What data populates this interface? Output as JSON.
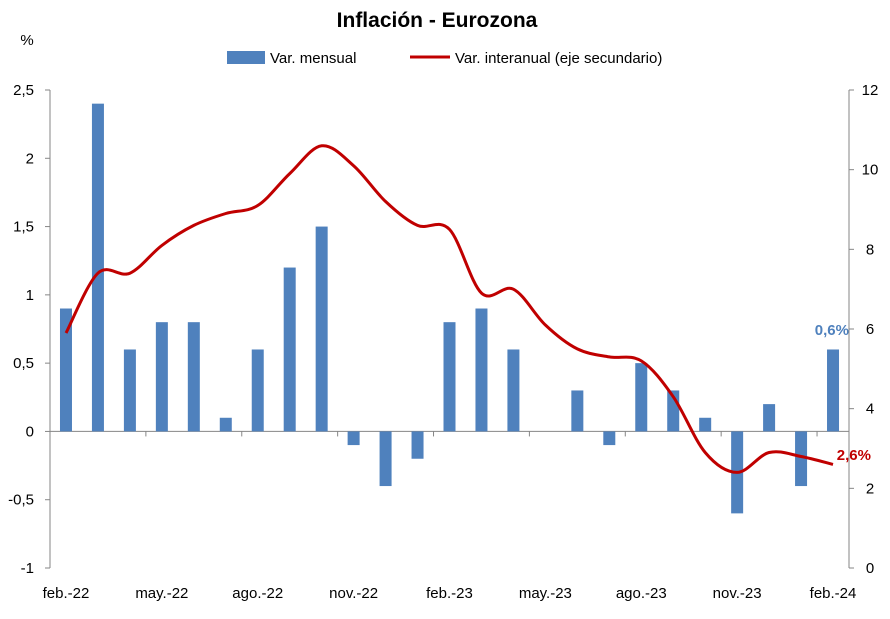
{
  "colors": {
    "bar": "#4F81BD",
    "line": "#C00000",
    "axis": "#868686",
    "bar_label": "#4F81BD",
    "line_label": "#C00000"
  },
  "chart_data": {
    "type": "bar+line",
    "title": "Inflación - Eurozona",
    "ylabel": "%",
    "y2label": "",
    "ylim": [
      -1,
      2.5
    ],
    "y2lim": [
      0,
      12
    ],
    "yticks": [
      "2,5",
      "2",
      "1,5",
      "1",
      "0,5",
      "0",
      "-0,5",
      "-1"
    ],
    "y2ticks": [
      "12",
      "10",
      "8",
      "6",
      "4",
      "2",
      "0"
    ],
    "x_tick_labels": [
      "feb.-22",
      "may.-22",
      "ago.-22",
      "nov.-22",
      "feb.-23",
      "may.-23",
      "ago.-23",
      "nov.-23",
      "feb.-24"
    ],
    "legend": {
      "position": "top",
      "bar_label": "Var. mensual",
      "line_label": "Var. interanual (eje secundario)"
    },
    "categories": [
      "feb.-22",
      "mar.-22",
      "abr.-22",
      "may.-22",
      "jun.-22",
      "jul.-22",
      "ago.-22",
      "sep.-22",
      "oct.-22",
      "nov.-22",
      "dic.-22",
      "ene.-23",
      "feb.-23",
      "mar.-23",
      "abr.-23",
      "may.-23",
      "jun.-23",
      "jul.-23",
      "ago.-23",
      "sep.-23",
      "oct.-23",
      "nov.-23",
      "dic.-23",
      "ene.-24",
      "feb.-24"
    ],
    "series": [
      {
        "name": "Var. mensual",
        "type": "bar",
        "axis": "primary",
        "values": [
          0.9,
          2.4,
          0.6,
          0.8,
          0.8,
          0.1,
          0.6,
          1.2,
          1.5,
          -0.1,
          -0.4,
          -0.2,
          0.8,
          0.9,
          0.6,
          0.0,
          0.3,
          -0.1,
          0.5,
          0.3,
          0.1,
          -0.6,
          0.2,
          -0.4,
          0.6
        ]
      },
      {
        "name": "Var. interanual (eje secundario)",
        "type": "line",
        "axis": "secondary",
        "values": [
          5.9,
          7.4,
          7.4,
          8.1,
          8.6,
          8.9,
          9.1,
          9.9,
          10.6,
          10.1,
          9.2,
          8.6,
          8.5,
          6.9,
          7.0,
          6.1,
          5.5,
          5.3,
          5.2,
          4.3,
          2.9,
          2.4,
          2.9,
          2.8,
          2.6
        ]
      }
    ],
    "data_labels": {
      "bar_last": "0,6%",
      "line_last": "2,6%"
    }
  }
}
